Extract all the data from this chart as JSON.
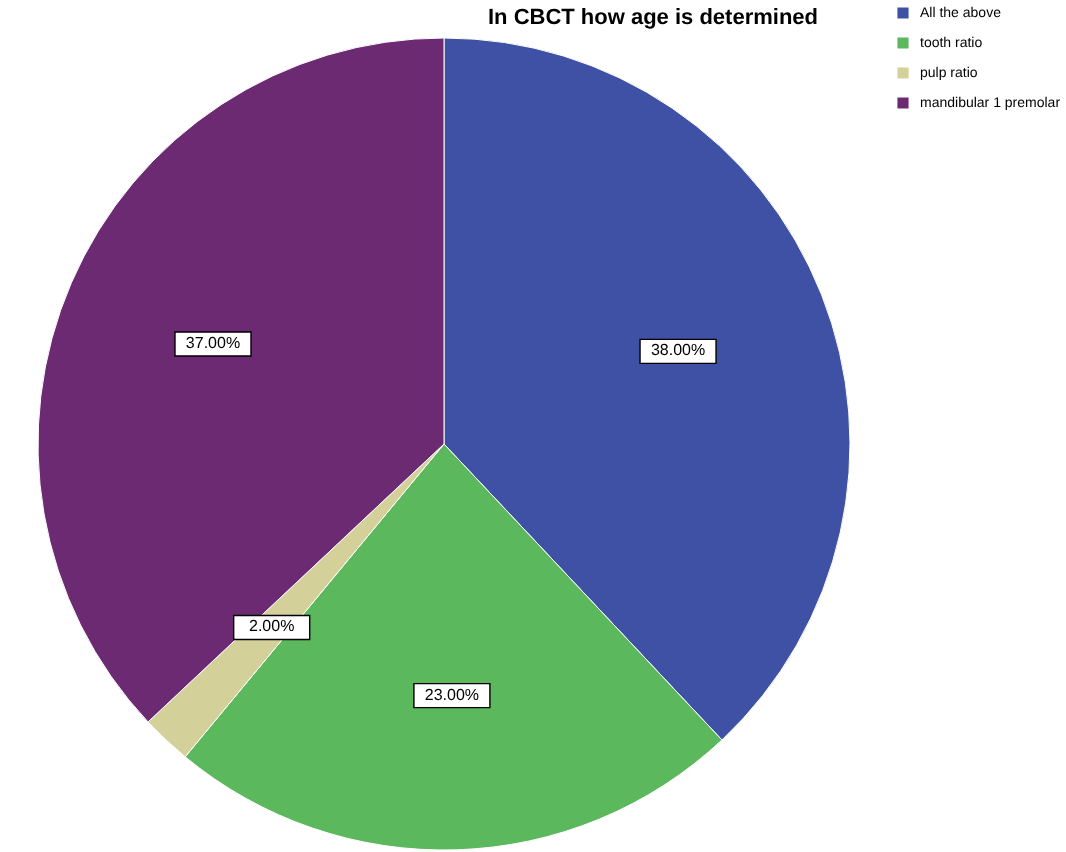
{
  "chart_data": {
    "type": "pie",
    "title": "In CBCT how age is determined",
    "categories": [
      "All the above",
      "tooth ratio",
      "pulp ratio",
      "mandibular 1 premolar"
    ],
    "values": [
      38,
      23,
      2,
      37
    ],
    "colors": [
      "#3f51a5",
      "#5cb85c",
      "#d4d09a",
      "#6b2a72"
    ],
    "value_labels": [
      "38.00%",
      "23.00%",
      "2.00%",
      "37.00%"
    ],
    "legend": "top right"
  }
}
